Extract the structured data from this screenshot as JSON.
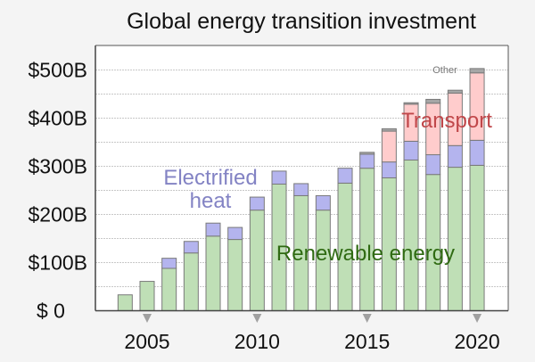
{
  "chart_data": {
    "type": "bar",
    "stacked": true,
    "title": "Global energy transition investment",
    "xlabel": "",
    "ylabel": "",
    "ylim": [
      0,
      550
    ],
    "grid": true,
    "categories": [
      2004,
      2005,
      2006,
      2007,
      2008,
      2009,
      2010,
      2011,
      2012,
      2013,
      2014,
      2015,
      2016,
      2017,
      2018,
      2019,
      2020
    ],
    "series": [
      {
        "name": "Renewable energy",
        "color": "#bfdfb6",
        "label_color": "#2f6a12",
        "values": [
          33,
          61,
          88,
          120,
          155,
          148,
          209,
          263,
          239,
          209,
          265,
          296,
          276,
          313,
          283,
          298,
          302
        ]
      },
      {
        "name": "Electrified heat",
        "color": "#b4b4ee",
        "label_color": "#8383c4",
        "values": [
          0,
          0,
          21,
          24,
          27,
          25,
          27,
          27,
          25,
          30,
          31,
          29,
          33,
          39,
          41,
          45,
          52
        ]
      },
      {
        "name": "Transport",
        "color": "#ffcccc",
        "label_color": "#c0474a",
        "values": [
          0,
          0,
          0,
          0,
          0,
          0,
          0,
          0,
          0,
          0,
          0,
          0,
          64,
          77,
          107,
          109,
          140
        ]
      },
      {
        "name": "Other",
        "color": "#a6a6a6",
        "label_color": "#777777",
        "values": [
          0,
          0,
          0,
          0,
          0,
          0,
          0,
          0,
          0,
          0,
          0,
          4,
          5,
          3,
          8,
          6,
          9
        ]
      }
    ],
    "y_ticks": [
      {
        "value": 0,
        "label": "$ 0"
      },
      {
        "value": 100,
        "label": "$100B"
      },
      {
        "value": 200,
        "label": "$200B"
      },
      {
        "value": 300,
        "label": "$300B"
      },
      {
        "value": 400,
        "label": "$400B"
      },
      {
        "value": 500,
        "label": "$500B"
      }
    ],
    "grid_step": 50,
    "x_ticks": [
      {
        "value": 2005,
        "label": "2005"
      },
      {
        "value": 2010,
        "label": "2010"
      },
      {
        "value": 2015,
        "label": "2015"
      },
      {
        "value": 2020,
        "label": "2020"
      }
    ],
    "annotations": {
      "renewable": "Renewable energy",
      "heat_line1": "Electrified",
      "heat_line2": "heat",
      "transport": "Transport",
      "other": "Other"
    }
  }
}
